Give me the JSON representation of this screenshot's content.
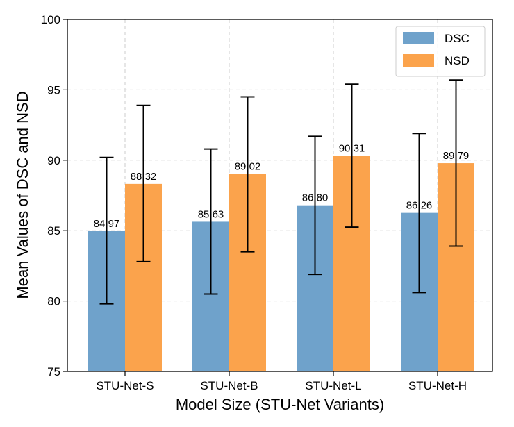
{
  "chart_data": {
    "type": "bar",
    "xlabel": "Model Size (STU-Net Variants)",
    "ylabel": "Mean Values of DSC and NSD",
    "categories": [
      "STU-Net-S",
      "STU-Net-B",
      "STU-Net-L",
      "STU-Net-H"
    ],
    "series": [
      {
        "name": "DSC",
        "color": "#6fa2cb",
        "values": [
          84.97,
          85.63,
          86.8,
          86.26
        ],
        "labels": [
          "84.97",
          "85.63",
          "86.80",
          "86.26"
        ],
        "error_low": [
          79.8,
          80.5,
          81.9,
          80.6
        ],
        "error_high": [
          90.2,
          90.8,
          91.7,
          91.9
        ]
      },
      {
        "name": "NSD",
        "color": "#fba34c",
        "values": [
          88.32,
          89.02,
          90.31,
          89.79
        ],
        "labels": [
          "88.32",
          "89.02",
          "90.31",
          "89.79"
        ],
        "error_low": [
          82.8,
          83.5,
          85.25,
          83.9
        ],
        "error_high": [
          93.9,
          94.5,
          95.4,
          95.7
        ]
      }
    ],
    "ylim": [
      75,
      100
    ],
    "yticks": [
      "75",
      "80",
      "85",
      "90",
      "95",
      "100"
    ],
    "grid": true,
    "legend_position": "top-right"
  }
}
